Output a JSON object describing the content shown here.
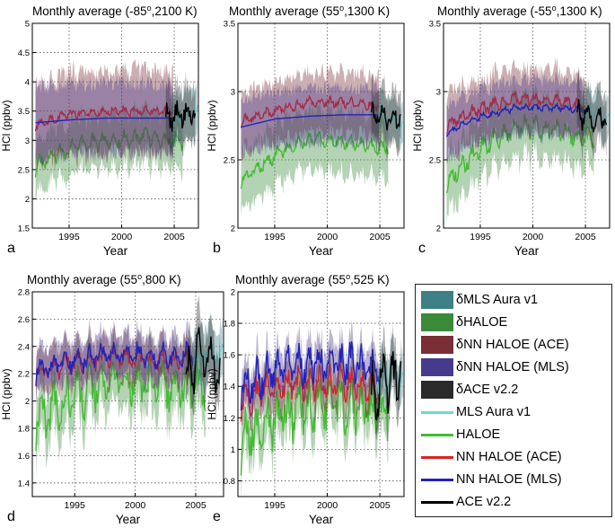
{
  "figure": {
    "panels": [
      {
        "letter": "a",
        "title": "Monthly average (-85",
        "sup": "o",
        "title_rest": ",2100 K)"
      },
      {
        "letter": "b",
        "title": "Monthly average (55",
        "sup": "o",
        "title_rest": ",1300 K)"
      },
      {
        "letter": "c",
        "title": "Monthly average (-55",
        "sup": "o",
        "title_rest": ",1300 K)"
      },
      {
        "letter": "d",
        "title": "Monthly average (55",
        "sup": "o",
        "title_rest": ",800 K)"
      },
      {
        "letter": "e",
        "title": "Monthly average (55",
        "sup": "o",
        "title_rest": ",525 K)"
      }
    ]
  },
  "legend": {
    "entries": [
      {
        "label": "δMLS Aura v1",
        "kind": "band",
        "color": "#3f7f86"
      },
      {
        "label": "δHALOE",
        "kind": "band",
        "color": "#3a8a3a"
      },
      {
        "label": "δNN HALOE (ACE)",
        "kind": "band",
        "color": "#7a2e35"
      },
      {
        "label": "δNN HALOE (MLS)",
        "kind": "band",
        "color": "#463a8c"
      },
      {
        "label": "δACE v2.2",
        "kind": "band",
        "color": "#2a2a2a"
      },
      {
        "label": "MLS Aura v1",
        "kind": "line",
        "color": "#6fd8d8"
      },
      {
        "label": "HALOE",
        "kind": "line",
        "color": "#44bb33"
      },
      {
        "label": "NN HALOE (ACE)",
        "kind": "line",
        "color": "#dd2222"
      },
      {
        "label": "NN HALOE (MLS)",
        "kind": "line",
        "color": "#2222bb"
      },
      {
        "label": "ACE v2.2",
        "kind": "line",
        "color": "#000000"
      }
    ]
  },
  "chart_data": [
    {
      "type": "line",
      "title": "Monthly average (-85o,2100 K)",
      "panel_letter": "a",
      "xlabel": "Year",
      "ylabel": "HCl (ppbv)",
      "xlim": [
        1991.5,
        2007.3
      ],
      "ylim": [
        1.5,
        5.0
      ],
      "xticks": [
        1995,
        2000,
        2005
      ],
      "yticks": [
        1.5,
        2,
        2.5,
        3,
        3.5,
        4,
        4.5,
        5
      ],
      "yticklabels": [
        "1.5",
        "2",
        "2.5",
        "3",
        "3.5",
        "4",
        "4.5",
        "5"
      ],
      "grid": true,
      "series": [
        {
          "name": "NN HALOE (ACE)",
          "x_start": 1991.8,
          "x_end": 2004.9,
          "baseline": [
            3.25,
            3.45,
            3.5,
            3.5,
            3.5
          ],
          "noise": 0.06,
          "band": 0.7
        },
        {
          "name": "NN HALOE (MLS)",
          "x_start": 1991.8,
          "x_end": 2004.9,
          "baseline": [
            3.3,
            3.35,
            3.38,
            3.38,
            3.38
          ],
          "noise": 0.0,
          "band": 0.6
        },
        {
          "name": "HALOE",
          "x_start": 1991.8,
          "x_end": 2005.8,
          "baseline": [
            2.55,
            2.9,
            3.0,
            3.05,
            3.0
          ],
          "noise": 0.12,
          "band": 0.45
        },
        {
          "name": "MLS Aura v1",
          "x_start": 2004.7,
          "x_end": 2007.2,
          "baseline": [
            3.3,
            3.4,
            3.45
          ],
          "noise": 0.1,
          "band": 0.4
        },
        {
          "name": "ACE v2.2",
          "x_start": 2004.2,
          "x_end": 2007.0,
          "baseline": [
            3.4,
            3.45,
            3.5
          ],
          "noise": 0.18,
          "band": 0.45
        }
      ]
    },
    {
      "type": "line",
      "title": "Monthly average (55o,1300 K)",
      "panel_letter": "b",
      "xlabel": "Year",
      "ylabel": "HCl (ppbv)",
      "xlim": [
        1991.5,
        2007.3
      ],
      "ylim": [
        2.0,
        3.5
      ],
      "xticks": [
        1995,
        2000,
        2005
      ],
      "yticks": [
        2,
        2.5,
        3,
        3.5
      ],
      "yticklabels": [
        "2",
        "2.5",
        "3",
        "3.5"
      ],
      "grid": true,
      "series": [
        {
          "name": "NN HALOE (ACE)",
          "x_start": 1991.8,
          "x_end": 2004.9,
          "baseline": [
            2.78,
            2.86,
            2.92,
            2.92,
            2.9
          ],
          "noise": 0.03,
          "band": 0.22
        },
        {
          "name": "NN HALOE (MLS)",
          "x_start": 1991.8,
          "x_end": 2004.9,
          "baseline": [
            2.74,
            2.8,
            2.82,
            2.83,
            2.83
          ],
          "noise": 0.0,
          "band": 0.2
        },
        {
          "name": "HALOE",
          "x_start": 1991.8,
          "x_end": 2005.8,
          "baseline": [
            2.35,
            2.55,
            2.66,
            2.63,
            2.58
          ],
          "noise": 0.04,
          "band": 0.22
        },
        {
          "name": "MLS Aura v1",
          "x_start": 2004.7,
          "x_end": 2007.2,
          "baseline": [
            2.85,
            2.8,
            2.76
          ],
          "noise": 0.04,
          "band": 0.15
        },
        {
          "name": "ACE v2.2",
          "x_start": 2004.2,
          "x_end": 2007.0,
          "baseline": [
            2.85,
            2.82,
            2.8
          ],
          "noise": 0.08,
          "band": 0.2
        }
      ]
    },
    {
      "type": "line",
      "title": "Monthly average (-55o,1300 K)",
      "panel_letter": "c",
      "xlabel": "Year",
      "ylabel": "HCl (ppbv)",
      "xlim": [
        1991.5,
        2007.3
      ],
      "ylim": [
        2.0,
        3.5
      ],
      "xticks": [
        1995,
        2000,
        2005
      ],
      "yticks": [
        2,
        2.5,
        3,
        3.5
      ],
      "yticklabels": [
        "2",
        "2.5",
        "3",
        "3.5"
      ],
      "grid": true,
      "series": [
        {
          "name": "NN HALOE (ACE)",
          "x_start": 1991.8,
          "x_end": 2004.9,
          "baseline": [
            2.75,
            2.88,
            2.95,
            2.93,
            2.9
          ],
          "noise": 0.04,
          "band": 0.22
        },
        {
          "name": "NN HALOE (MLS)",
          "x_start": 1991.8,
          "x_end": 2004.9,
          "baseline": [
            2.7,
            2.82,
            2.88,
            2.88,
            2.87
          ],
          "noise": 0.02,
          "band": 0.2
        },
        {
          "name": "HALOE",
          "x_start": 1991.8,
          "x_end": 2005.8,
          "baseline": [
            2.35,
            2.6,
            2.75,
            2.72,
            2.65
          ],
          "noise": 0.06,
          "band": 0.22
        },
        {
          "name": "MLS Aura v1",
          "x_start": 2004.7,
          "x_end": 2007.2,
          "baseline": [
            2.85,
            2.85,
            2.8
          ],
          "noise": 0.04,
          "band": 0.15
        },
        {
          "name": "ACE v2.2",
          "x_start": 2004.2,
          "x_end": 2007.0,
          "baseline": [
            2.85,
            2.82,
            2.8
          ],
          "noise": 0.08,
          "band": 0.2
        }
      ]
    },
    {
      "type": "line",
      "title": "Monthly average (55o,800 K)",
      "panel_letter": "d",
      "xlabel": "Year",
      "ylabel": "HCl (ppbv)",
      "xlim": [
        1991.5,
        2007.3
      ],
      "ylim": [
        1.3,
        2.8
      ],
      "xticks": [
        1995,
        2000,
        2005
      ],
      "yticks": [
        1.4,
        1.6,
        1.8,
        2,
        2.2,
        2.4,
        2.6,
        2.8
      ],
      "yticklabels": [
        "1.4",
        "1.6",
        "1.8",
        "2",
        "2.2",
        "2.4",
        "2.6",
        "2.8"
      ],
      "grid": true,
      "series": [
        {
          "name": "NN HALOE (ACE)",
          "x_start": 1991.8,
          "x_end": 2004.9,
          "baseline": [
            2.2,
            2.28,
            2.32,
            2.3,
            2.3
          ],
          "noise": 0.06,
          "band": 0.15
        },
        {
          "name": "NN HALOE (MLS)",
          "x_start": 1991.8,
          "x_end": 2004.9,
          "baseline": [
            2.22,
            2.3,
            2.35,
            2.33,
            2.33
          ],
          "noise": 0.07,
          "band": 0.15
        },
        {
          "name": "HALOE",
          "x_start": 1991.8,
          "x_end": 2005.8,
          "baseline": [
            1.85,
            2.05,
            2.15,
            2.12,
            2.1
          ],
          "noise": 0.14,
          "band": 0.2
        },
        {
          "name": "MLS Aura v1",
          "x_start": 2004.7,
          "x_end": 2007.2,
          "baseline": [
            2.3,
            2.35,
            2.35
          ],
          "noise": 0.05,
          "band": 0.2
        },
        {
          "name": "ACE v2.2",
          "x_start": 2004.2,
          "x_end": 2007.0,
          "baseline": [
            2.2,
            2.3,
            2.3
          ],
          "noise": 0.18,
          "band": 0.2
        }
      ]
    },
    {
      "type": "line",
      "title": "Monthly average (55o,525 K)",
      "panel_letter": "e",
      "xlabel": "Year",
      "ylabel": "HCl (ppbv)",
      "xlim": [
        1991.5,
        2007.3
      ],
      "ylim": [
        0.7,
        2.0
      ],
      "xticks": [
        1995,
        2000,
        2005
      ],
      "yticks": [
        0.8,
        1.0,
        1.2,
        1.4,
        1.6,
        1.8,
        2.0
      ],
      "yticklabels": [
        "0.8",
        "1",
        "1.2",
        "1.4",
        "1.6",
        "1.8",
        "2"
      ],
      "grid": true,
      "series": [
        {
          "name": "NN HALOE (ACE)",
          "x_start": 1991.8,
          "x_end": 2004.9,
          "baseline": [
            1.3,
            1.4,
            1.42,
            1.42,
            1.4
          ],
          "noise": 0.08,
          "band": 0.12
        },
        {
          "name": "NN HALOE (MLS)",
          "x_start": 1991.8,
          "x_end": 2004.9,
          "baseline": [
            1.4,
            1.5,
            1.55,
            1.55,
            1.5
          ],
          "noise": 0.1,
          "band": 0.12
        },
        {
          "name": "HALOE",
          "x_start": 1991.8,
          "x_end": 2005.8,
          "baseline": [
            1.05,
            1.2,
            1.3,
            1.3,
            1.25
          ],
          "noise": 0.14,
          "band": 0.15
        },
        {
          "name": "MLS Aura v1",
          "x_start": 2004.7,
          "x_end": 2007.2,
          "baseline": [
            1.45,
            1.5,
            1.45
          ],
          "noise": 0.08,
          "band": 0.15
        },
        {
          "name": "ACE v2.2",
          "x_start": 2004.2,
          "x_end": 2007.0,
          "baseline": [
            1.35,
            1.45,
            1.45
          ],
          "noise": 0.15,
          "band": 0.15
        }
      ]
    }
  ]
}
